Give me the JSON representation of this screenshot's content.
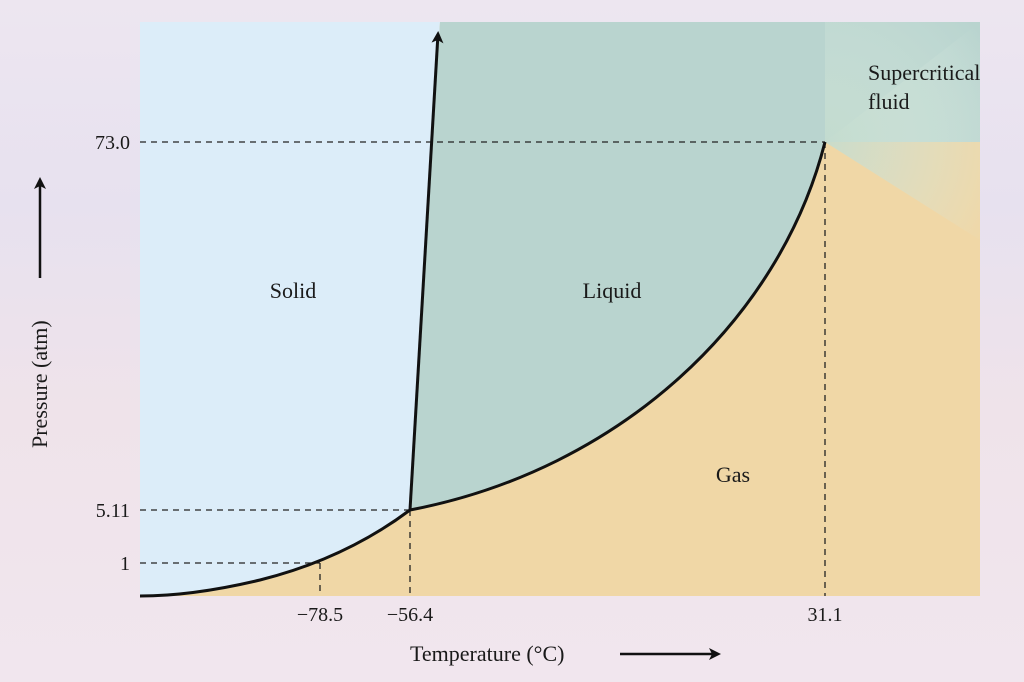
{
  "diagram": {
    "regions": {
      "solid": "Solid",
      "liquid": "Liquid",
      "gas": "Gas",
      "supercritical_line1": "Supercritical",
      "supercritical_line2": "fluid"
    },
    "x_axis": {
      "label": "Temperature (°C)",
      "ticks": [
        "−78.5",
        "−56.4",
        "31.1"
      ]
    },
    "y_axis": {
      "label": "Pressure (atm)",
      "ticks": [
        "73.0",
        "5.11",
        "1"
      ]
    },
    "colors": {
      "solid": "#dcecf8",
      "liquid": "#b9d3cf",
      "gas": "#f3d7a3",
      "supercritical": "#cfe3d8",
      "line": "#111111"
    }
  }
}
